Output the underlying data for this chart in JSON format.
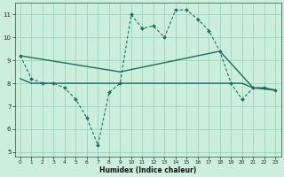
{
  "line_dashed_x": [
    0,
    1,
    2,
    3,
    4,
    5,
    6,
    7,
    8,
    9,
    10,
    11,
    12,
    13,
    14,
    15,
    16,
    17,
    18,
    19,
    20,
    21,
    22,
    23
  ],
  "line_dashed_y": [
    9.2,
    8.2,
    8.0,
    8.0,
    7.8,
    7.3,
    6.5,
    5.3,
    7.6,
    8.0,
    11.0,
    10.4,
    10.5,
    10.0,
    11.2,
    11.2,
    10.8,
    10.3,
    9.4,
    8.0,
    7.3,
    7.8,
    7.8,
    7.7
  ],
  "line_solid1_x": [
    0,
    1,
    2,
    3,
    4,
    5,
    6,
    7,
    8,
    9,
    10,
    11,
    12,
    13,
    14,
    15,
    16,
    17,
    18,
    19,
    20,
    21,
    22,
    23
  ],
  "line_solid1_y": [
    8.2,
    8.0,
    8.0,
    8.0,
    8.0,
    8.0,
    8.0,
    8.0,
    8.0,
    8.0,
    8.0,
    8.0,
    8.0,
    8.0,
    8.0,
    8.0,
    8.0,
    8.0,
    8.0,
    8.0,
    8.0,
    7.8,
    7.8,
    7.7
  ],
  "line_solid2_x": [
    0,
    9,
    18,
    21,
    23
  ],
  "line_solid2_y": [
    9.2,
    8.5,
    9.4,
    7.8,
    7.7
  ],
  "bg_color": "#cceedd",
  "grid_color": "#99ccbb",
  "line_color": "#1a6e60",
  "xlim": [
    -0.5,
    23.5
  ],
  "ylim": [
    4.8,
    11.5
  ],
  "xticks": [
    0,
    1,
    2,
    3,
    4,
    5,
    6,
    7,
    8,
    9,
    10,
    11,
    12,
    13,
    14,
    15,
    16,
    17,
    18,
    19,
    20,
    21,
    22,
    23
  ],
  "yticks": [
    5,
    6,
    7,
    8,
    9,
    10,
    11
  ],
  "xlabel": "Humidex (Indice chaleur)"
}
